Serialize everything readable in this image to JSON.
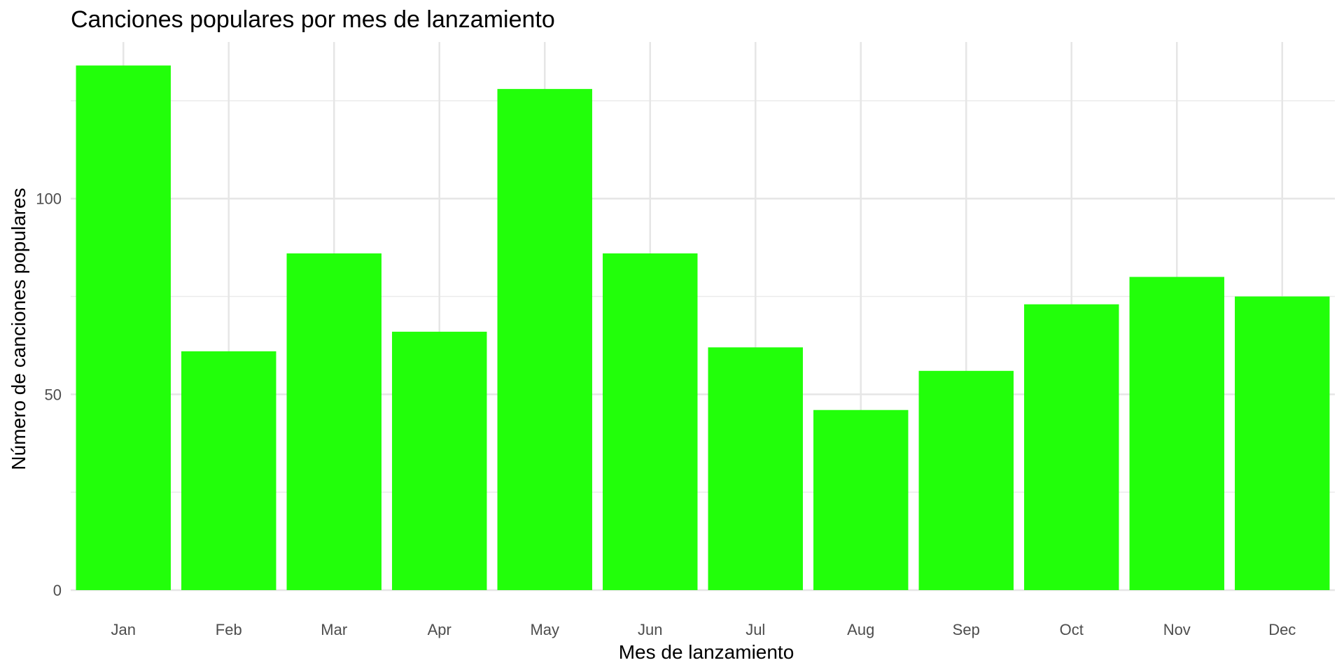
{
  "chart_data": {
    "type": "bar",
    "title": "Canciones populares por mes de lanzamiento",
    "xlabel": "Mes de lanzamiento",
    "ylabel": "Número de canciones populares",
    "categories": [
      "Jan",
      "Feb",
      "Mar",
      "Apr",
      "May",
      "Jun",
      "Jul",
      "Aug",
      "Sep",
      "Oct",
      "Nov",
      "Dec"
    ],
    "values": [
      134,
      61,
      86,
      66,
      128,
      86,
      62,
      46,
      56,
      73,
      80,
      75
    ],
    "ylim": [
      0,
      134
    ],
    "yticks": [
      0,
      50,
      100
    ],
    "grid": true,
    "legend": "none",
    "bar_color": "#22ff0a"
  }
}
